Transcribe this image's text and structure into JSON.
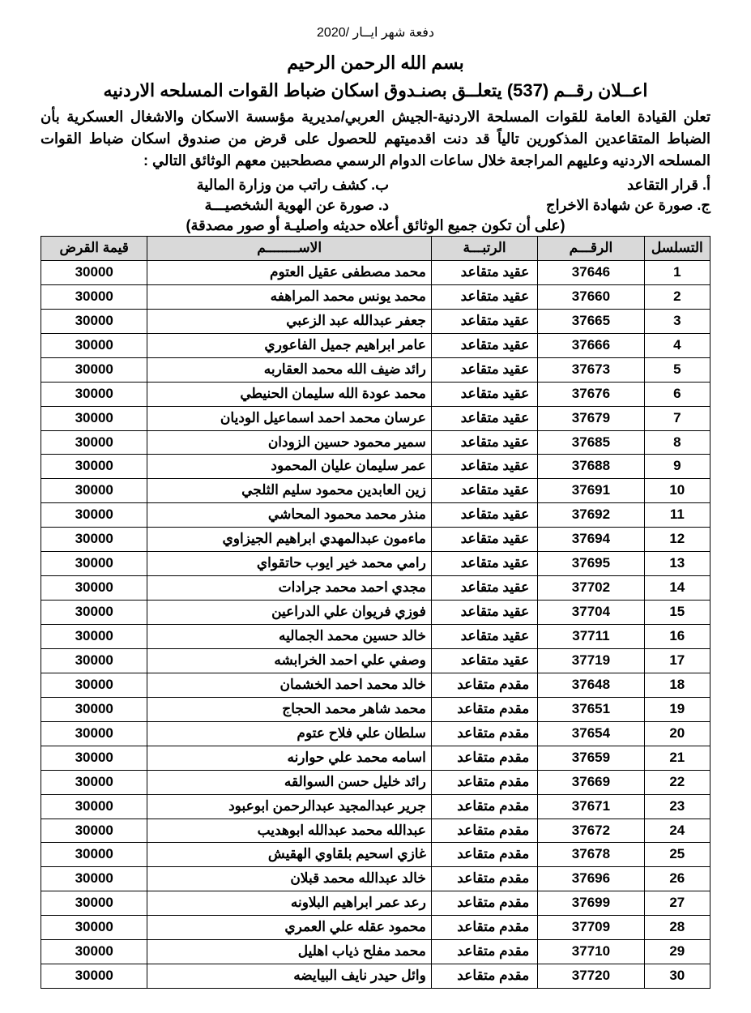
{
  "batch_header": "دفعة شهر ايــار /2020",
  "bismillah": "بسم الله الرحمن الرحيم",
  "announcement_title": "اعــلان رقــم (537) يتعلــق بصنـدوق اسكان ضباط القوات المسلحه الاردنيه",
  "preamble": "تعلن القيادة العامة للقوات المسلحة الاردنية-الجيش العربي/مديرية مؤسسة الاسكان والاشغال العسكرية بأن الضباط المتقاعدين المذكورين تالياً قد دنت اقدميتهم للحصول على قرض من صندوق اسكان ضباط القوات المسلحه الاردنيه وعليهم المراجعة خلال ساعات الدوام الرسمي مصطحبين معهم الوثائق التالي :",
  "docs": {
    "a": "أ. قرار التقاعد",
    "b": "ب. كشف راتب من وزارة المالية",
    "c": "ج. صورة عن شهادة الاخراج",
    "d": "د. صورة عن الهوية الشخصيـــة"
  },
  "note": "(على أن تكون جميع الوثائق أعلاه حديثه واصليـة أو صور مصدقة)",
  "table": {
    "columns": {
      "seq": "التسلسل",
      "num": "الرقـــم",
      "rank": "الرتبـــة",
      "name": "الاســــــــم",
      "loan": "قيمة القرض"
    },
    "header_bg": "#d9d9d9",
    "border_color": "#000000",
    "rows": [
      {
        "seq": "1",
        "num": "37646",
        "rank": "عقيد متقاعد",
        "name": "محمد مصطفى عقيل العتوم",
        "loan": "30000"
      },
      {
        "seq": "2",
        "num": "37660",
        "rank": "عقيد متقاعد",
        "name": "محمد يونس محمد المراهفه",
        "loan": "30000"
      },
      {
        "seq": "3",
        "num": "37665",
        "rank": "عقيد متقاعد",
        "name": "جعفر عبدالله عبد الزعبي",
        "loan": "30000"
      },
      {
        "seq": "4",
        "num": "37666",
        "rank": "عقيد متقاعد",
        "name": "عامر ابراهيم جميل الفاعوري",
        "loan": "30000"
      },
      {
        "seq": "5",
        "num": "37673",
        "rank": "عقيد متقاعد",
        "name": "رائد ضيف الله محمد العقاربه",
        "loan": "30000"
      },
      {
        "seq": "6",
        "num": "37676",
        "rank": "عقيد متقاعد",
        "name": "محمد عودة الله سليمان الحنيطي",
        "loan": "30000"
      },
      {
        "seq": "7",
        "num": "37679",
        "rank": "عقيد متقاعد",
        "name": "عرسان محمد احمد اسماعيل الوديان",
        "loan": "30000"
      },
      {
        "seq": "8",
        "num": "37685",
        "rank": "عقيد متقاعد",
        "name": "سمير محمود حسين الزودان",
        "loan": "30000"
      },
      {
        "seq": "9",
        "num": "37688",
        "rank": "عقيد متقاعد",
        "name": "عمر سليمان عليان المحمود",
        "loan": "30000"
      },
      {
        "seq": "10",
        "num": "37691",
        "rank": "عقيد متقاعد",
        "name": "زين العابدين محمود سليم الثلجي",
        "loan": "30000"
      },
      {
        "seq": "11",
        "num": "37692",
        "rank": "عقيد متقاعد",
        "name": "منذر محمد محمود المحاشي",
        "loan": "30000"
      },
      {
        "seq": "12",
        "num": "37694",
        "rank": "عقيد متقاعد",
        "name": "ماءمون عبدالمهدي ابراهيم الجيزاوي",
        "loan": "30000"
      },
      {
        "seq": "13",
        "num": "37695",
        "rank": "عقيد متقاعد",
        "name": "رامي محمد خير ايوب حاتقواي",
        "loan": "30000"
      },
      {
        "seq": "14",
        "num": "37702",
        "rank": "عقيد متقاعد",
        "name": "مجدي احمد محمد جرادات",
        "loan": "30000"
      },
      {
        "seq": "15",
        "num": "37704",
        "rank": "عقيد متقاعد",
        "name": "فوزي فريوان علي الدراعين",
        "loan": "30000"
      },
      {
        "seq": "16",
        "num": "37711",
        "rank": "عقيد متقاعد",
        "name": "خالد حسين محمد الجماليه",
        "loan": "30000"
      },
      {
        "seq": "17",
        "num": "37719",
        "rank": "عقيد متقاعد",
        "name": "وصفي علي احمد الخرابشه",
        "loan": "30000"
      },
      {
        "seq": "18",
        "num": "37648",
        "rank": "مقدم متقاعد",
        "name": "خالد محمد احمد الخشمان",
        "loan": "30000"
      },
      {
        "seq": "19",
        "num": "37651",
        "rank": "مقدم متقاعد",
        "name": "محمد شاهر محمد الحجاج",
        "loan": "30000"
      },
      {
        "seq": "20",
        "num": "37654",
        "rank": "مقدم متقاعد",
        "name": "سلطان علي فلاح عتوم",
        "loan": "30000"
      },
      {
        "seq": "21",
        "num": "37659",
        "rank": "مقدم متقاعد",
        "name": "اسامه محمد علي حوارنه",
        "loan": "30000"
      },
      {
        "seq": "22",
        "num": "37669",
        "rank": "مقدم متقاعد",
        "name": "رائد خليل حسن السوالقه",
        "loan": "30000"
      },
      {
        "seq": "23",
        "num": "37671",
        "rank": "مقدم متقاعد",
        "name": "جرير عبدالمجيد عبدالرحمن ابوعبود",
        "loan": "30000"
      },
      {
        "seq": "24",
        "num": "37672",
        "rank": "مقدم متقاعد",
        "name": "عبدالله محمد عبدالله ابوهديب",
        "loan": "30000"
      },
      {
        "seq": "25",
        "num": "37678",
        "rank": "مقدم متقاعد",
        "name": "غازي اسحيم بلقاوي الهقيش",
        "loan": "30000"
      },
      {
        "seq": "26",
        "num": "37696",
        "rank": "مقدم متقاعد",
        "name": "خالد عبدالله محمد قبلان",
        "loan": "30000"
      },
      {
        "seq": "27",
        "num": "37699",
        "rank": "مقدم متقاعد",
        "name": "رعد عمر ابراهيم البلاونه",
        "loan": "30000"
      },
      {
        "seq": "28",
        "num": "37709",
        "rank": "مقدم متقاعد",
        "name": "محمود عقله علي العمري",
        "loan": "30000"
      },
      {
        "seq": "29",
        "num": "37710",
        "rank": "مقدم متقاعد",
        "name": "محمد مفلح ذياب اهليل",
        "loan": "30000"
      },
      {
        "seq": "30",
        "num": "37720",
        "rank": "مقدم متقاعد",
        "name": "وائل حيدر نايف البيايضه",
        "loan": "30000"
      }
    ]
  }
}
